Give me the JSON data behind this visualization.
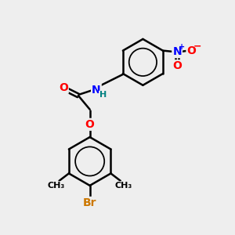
{
  "background_color": "#eeeeee",
  "bond_color": "#000000",
  "bond_width": 1.8,
  "atom_colors": {
    "O": "#ff0000",
    "N": "#0000ff",
    "Br": "#cc7700",
    "H": "#008080",
    "C": "#000000",
    "plus": "#0000ff",
    "minus": "#ff0000"
  },
  "font_size_large": 10,
  "font_size_medium": 8,
  "font_size_small": 7,
  "xlim": [
    0,
    10
  ],
  "ylim": [
    0,
    10
  ]
}
